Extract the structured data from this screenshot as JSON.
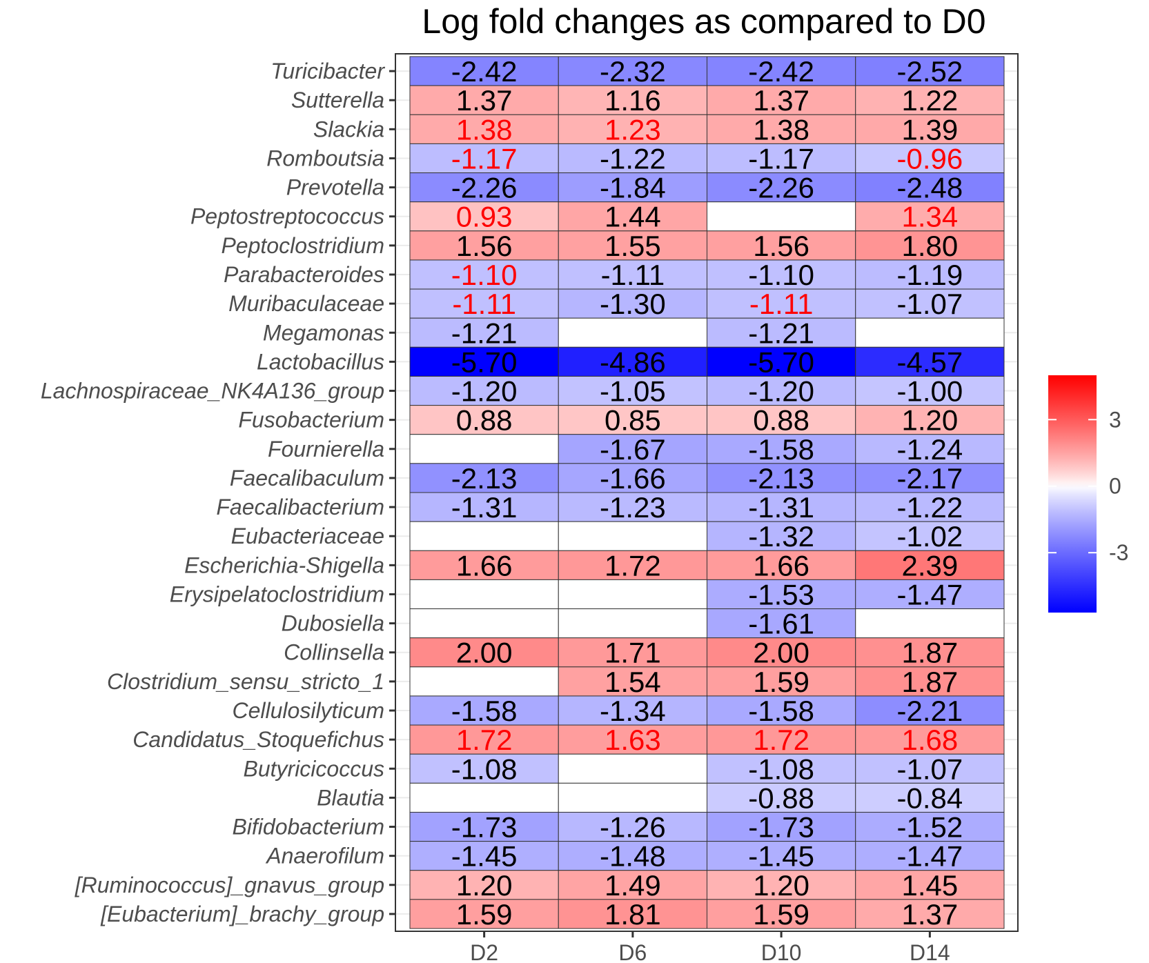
{
  "chart_data": {
    "type": "heatmap",
    "title": "Log fold changes as compared to D0",
    "xlabel": "",
    "ylabel": "",
    "columns": [
      "D2",
      "D6",
      "D10",
      "D14"
    ],
    "rows": [
      {
        "name": "Turicibacter",
        "values": [
          -2.42,
          -2.32,
          -2.42,
          -2.52
        ],
        "labels": [
          "-2.42",
          "-2.32",
          "-2.42",
          "-2.52"
        ],
        "red": [
          false,
          false,
          false,
          false
        ]
      },
      {
        "name": "Sutterella",
        "values": [
          1.37,
          1.16,
          1.37,
          1.22
        ],
        "labels": [
          "1.37",
          "1.16",
          "1.37",
          "1.22"
        ],
        "red": [
          false,
          false,
          false,
          false
        ]
      },
      {
        "name": "Slackia",
        "values": [
          1.38,
          1.23,
          1.38,
          1.39
        ],
        "labels": [
          "1.38",
          "1.23",
          "1.38",
          "1.39"
        ],
        "red": [
          true,
          true,
          false,
          false
        ]
      },
      {
        "name": "Romboutsia",
        "values": [
          -1.17,
          -1.22,
          -1.17,
          -0.96
        ],
        "labels": [
          "-1.17",
          "-1.22",
          "-1.17",
          "-0.96"
        ],
        "red": [
          true,
          false,
          false,
          true
        ]
      },
      {
        "name": "Prevotella",
        "values": [
          -2.26,
          -1.84,
          -2.26,
          -2.48
        ],
        "labels": [
          "-2.26",
          "-1.84",
          "-2.26",
          "-2.48"
        ],
        "red": [
          false,
          false,
          false,
          false
        ]
      },
      {
        "name": "Peptostreptococcus",
        "values": [
          0.93,
          1.44,
          null,
          1.34
        ],
        "labels": [
          "0.93",
          "1.44",
          "",
          "1.34"
        ],
        "red": [
          true,
          false,
          false,
          true
        ]
      },
      {
        "name": "Peptoclostridium",
        "values": [
          1.56,
          1.55,
          1.56,
          1.8
        ],
        "labels": [
          "1.56",
          "1.55",
          "1.56",
          "1.80"
        ],
        "red": [
          false,
          false,
          false,
          false
        ]
      },
      {
        "name": "Parabacteroides",
        "values": [
          -1.1,
          -1.11,
          -1.1,
          -1.19
        ],
        "labels": [
          "-1.10",
          "-1.11",
          "-1.10",
          "-1.19"
        ],
        "red": [
          true,
          false,
          false,
          false
        ]
      },
      {
        "name": "Muribaculaceae",
        "values": [
          -1.11,
          -1.3,
          -1.11,
          -1.07
        ],
        "labels": [
          "-1.11",
          "-1.30",
          "-1.11",
          "-1.07"
        ],
        "red": [
          true,
          false,
          true,
          false
        ]
      },
      {
        "name": "Megamonas",
        "values": [
          -1.21,
          null,
          -1.21,
          null
        ],
        "labels": [
          "-1.21",
          "",
          "-1.21",
          ""
        ],
        "red": [
          false,
          false,
          false,
          false
        ]
      },
      {
        "name": "Lactobacillus",
        "values": [
          -5.7,
          -4.86,
          -5.7,
          -4.57
        ],
        "labels": [
          "-5.70",
          "-4.86",
          "-5.70",
          "-4.57"
        ],
        "red": [
          false,
          false,
          false,
          false
        ]
      },
      {
        "name": "Lachnospiraceae_NK4A136_group",
        "values": [
          -1.2,
          -1.05,
          -1.2,
          -1.0
        ],
        "labels": [
          "-1.20",
          "-1.05",
          "-1.20",
          "-1.00"
        ],
        "red": [
          false,
          false,
          false,
          false
        ]
      },
      {
        "name": "Fusobacterium",
        "values": [
          0.88,
          0.85,
          0.88,
          1.2
        ],
        "labels": [
          "0.88",
          "0.85",
          "0.88",
          "1.20"
        ],
        "red": [
          false,
          false,
          false,
          false
        ]
      },
      {
        "name": "Fournierella",
        "values": [
          null,
          -1.67,
          -1.58,
          -1.24
        ],
        "labels": [
          "",
          "-1.67",
          "-1.58",
          "-1.24"
        ],
        "red": [
          false,
          false,
          false,
          false
        ]
      },
      {
        "name": "Faecalibaculum",
        "values": [
          -2.13,
          -1.66,
          -2.13,
          -2.17
        ],
        "labels": [
          "-2.13",
          "-1.66",
          "-2.13",
          "-2.17"
        ],
        "red": [
          false,
          false,
          false,
          false
        ]
      },
      {
        "name": "Faecalibacterium",
        "values": [
          -1.31,
          -1.23,
          -1.31,
          -1.22
        ],
        "labels": [
          "-1.31",
          "-1.23",
          "-1.31",
          "-1.22"
        ],
        "red": [
          false,
          false,
          false,
          false
        ]
      },
      {
        "name": "Eubacteriaceae",
        "values": [
          null,
          null,
          -1.32,
          -1.02
        ],
        "labels": [
          "",
          "",
          "-1.32",
          "-1.02"
        ],
        "red": [
          false,
          false,
          false,
          false
        ]
      },
      {
        "name": "Escherichia-Shigella",
        "values": [
          1.66,
          1.72,
          1.66,
          2.39
        ],
        "labels": [
          "1.66",
          "1.72",
          "1.66",
          "2.39"
        ],
        "red": [
          false,
          false,
          false,
          false
        ]
      },
      {
        "name": "Erysipelatoclostridium",
        "values": [
          null,
          null,
          -1.53,
          -1.47
        ],
        "labels": [
          "",
          "",
          "-1.53",
          "-1.47"
        ],
        "red": [
          false,
          false,
          false,
          false
        ]
      },
      {
        "name": "Dubosiella",
        "values": [
          null,
          null,
          -1.61,
          null
        ],
        "labels": [
          "",
          "",
          "-1.61",
          ""
        ],
        "red": [
          false,
          false,
          false,
          false
        ]
      },
      {
        "name": "Collinsella",
        "values": [
          2.0,
          1.71,
          2.0,
          1.87
        ],
        "labels": [
          "2.00",
          "1.71",
          "2.00",
          "1.87"
        ],
        "red": [
          false,
          false,
          false,
          false
        ]
      },
      {
        "name": "Clostridium_sensu_stricto_1",
        "values": [
          null,
          1.54,
          1.59,
          1.87
        ],
        "labels": [
          "",
          "1.54",
          "1.59",
          "1.87"
        ],
        "red": [
          false,
          false,
          false,
          false
        ]
      },
      {
        "name": "Cellulosilyticum",
        "values": [
          -1.58,
          -1.34,
          -1.58,
          -2.21
        ],
        "labels": [
          "-1.58",
          "-1.34",
          "-1.58",
          "-2.21"
        ],
        "red": [
          false,
          false,
          false,
          false
        ]
      },
      {
        "name": "Candidatus_Stoquefichus",
        "values": [
          1.72,
          1.63,
          1.72,
          1.68
        ],
        "labels": [
          "1.72",
          "1.63",
          "1.72",
          "1.68"
        ],
        "red": [
          true,
          true,
          true,
          true
        ]
      },
      {
        "name": "Butyricicoccus",
        "values": [
          -1.08,
          null,
          -1.08,
          -1.07
        ],
        "labels": [
          "-1.08",
          "",
          "-1.08",
          "-1.07"
        ],
        "red": [
          false,
          false,
          false,
          false
        ]
      },
      {
        "name": "Blautia",
        "values": [
          null,
          null,
          -0.88,
          -0.84
        ],
        "labels": [
          "",
          "",
          "-0.88",
          "-0.84"
        ],
        "red": [
          false,
          false,
          false,
          false
        ]
      },
      {
        "name": "Bifidobacterium",
        "values": [
          -1.73,
          -1.26,
          -1.73,
          -1.52
        ],
        "labels": [
          "-1.73",
          "-1.26",
          "-1.73",
          "-1.52"
        ],
        "red": [
          false,
          false,
          false,
          false
        ]
      },
      {
        "name": "Anaerofilum",
        "values": [
          -1.45,
          -1.48,
          -1.45,
          -1.47
        ],
        "labels": [
          "-1.45",
          "-1.48",
          "-1.45",
          "-1.47"
        ],
        "red": [
          false,
          false,
          false,
          false
        ]
      },
      {
        "name": "[Ruminococcus]_gnavus_group",
        "values": [
          1.2,
          1.49,
          1.2,
          1.45
        ],
        "labels": [
          "1.20",
          "1.49",
          "1.20",
          "1.45"
        ],
        "red": [
          false,
          false,
          false,
          false
        ]
      },
      {
        "name": "[Eubacterium]_brachy_group",
        "values": [
          1.59,
          1.81,
          1.59,
          1.37
        ],
        "labels": [
          "1.59",
          "1.81",
          "1.59",
          "1.37"
        ],
        "red": [
          false,
          false,
          false,
          false
        ]
      }
    ],
    "color_scale": {
      "low": "#0000ff",
      "mid": "#ffffff",
      "high": "#ff0000",
      "domain": [
        -5.7,
        5.0
      ],
      "legend_ticks": [
        3,
        0,
        -3
      ],
      "legend_tick_labels": [
        "3",
        "0",
        "-3"
      ]
    },
    "label_colors": {
      "normal": "#000000",
      "highlight": "#ff0000"
    },
    "legend_placement": "right"
  }
}
